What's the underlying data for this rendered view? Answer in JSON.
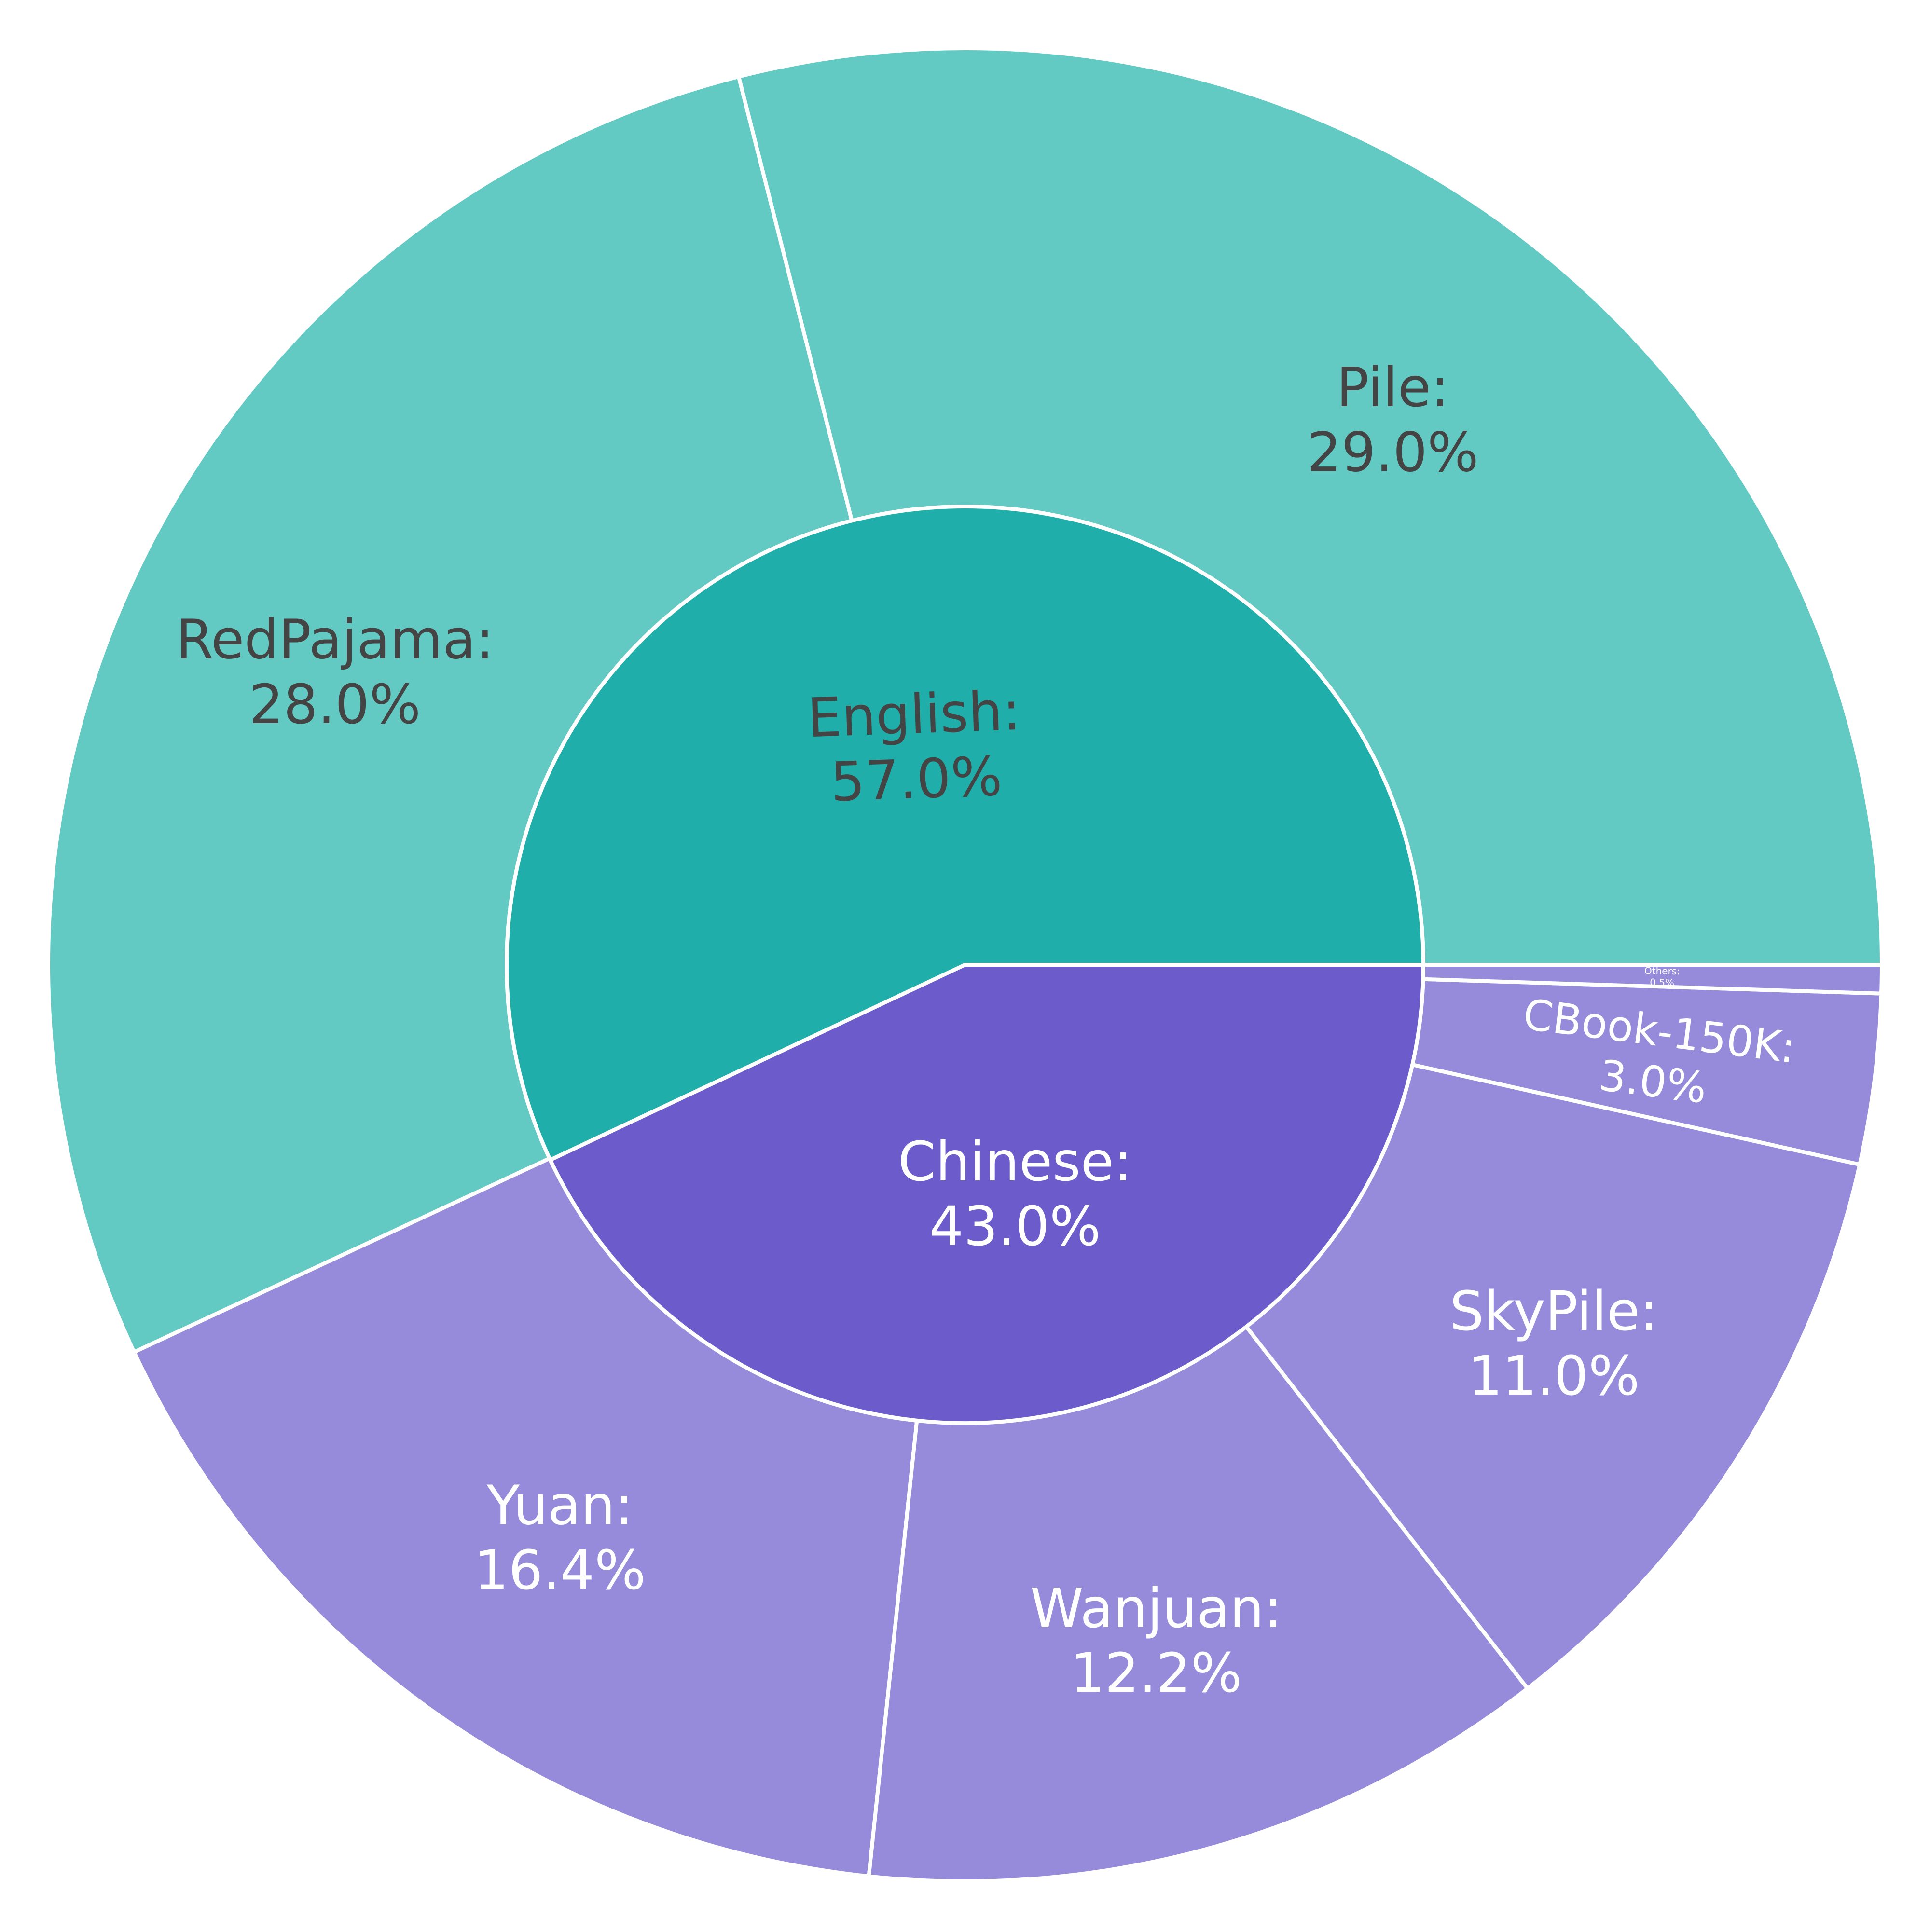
{
  "chart_data": {
    "type": "sunburst",
    "title": "",
    "colors": {
      "English": "#20aeaa",
      "English-child": "#63c9c3",
      "Chinese": "#6c5bcb",
      "Chinese-child": "#968bdb",
      "stroke": "#ffffff",
      "dark_label": "#444444",
      "light_label": "#ffffff"
    },
    "inner": [
      {
        "name": "English",
        "label": "English:",
        "pct_label": "57.0%",
        "value": 57.0
      },
      {
        "name": "Chinese",
        "label": "Chinese:",
        "pct_label": "43.0%",
        "value": 43.0
      }
    ],
    "outer": [
      {
        "name": "Pile",
        "parent": "English",
        "label": "Pile:",
        "pct_label": "29.0%",
        "value": 29.0
      },
      {
        "name": "RedPajama",
        "parent": "English",
        "label": "RedPajama:",
        "pct_label": "28.0%",
        "value": 28.0
      },
      {
        "name": "Yuan",
        "parent": "Chinese",
        "label": "Yuan:",
        "pct_label": "16.4%",
        "value": 16.4
      },
      {
        "name": "Wanjuan",
        "parent": "Chinese",
        "label": "Wanjuan:",
        "pct_label": "12.2%",
        "value": 12.2
      },
      {
        "name": "SkyPile",
        "parent": "Chinese",
        "label": "SkyPile:",
        "pct_label": "11.0%",
        "value": 11.0
      },
      {
        "name": "CBook-150K",
        "parent": "Chinese",
        "label": "CBook-150K:",
        "pct_label": "3.0%",
        "value": 3.0
      },
      {
        "name": "Others",
        "parent": "Chinese",
        "label": "Others:",
        "pct_label": "0.5%",
        "value": 0.5
      }
    ]
  }
}
